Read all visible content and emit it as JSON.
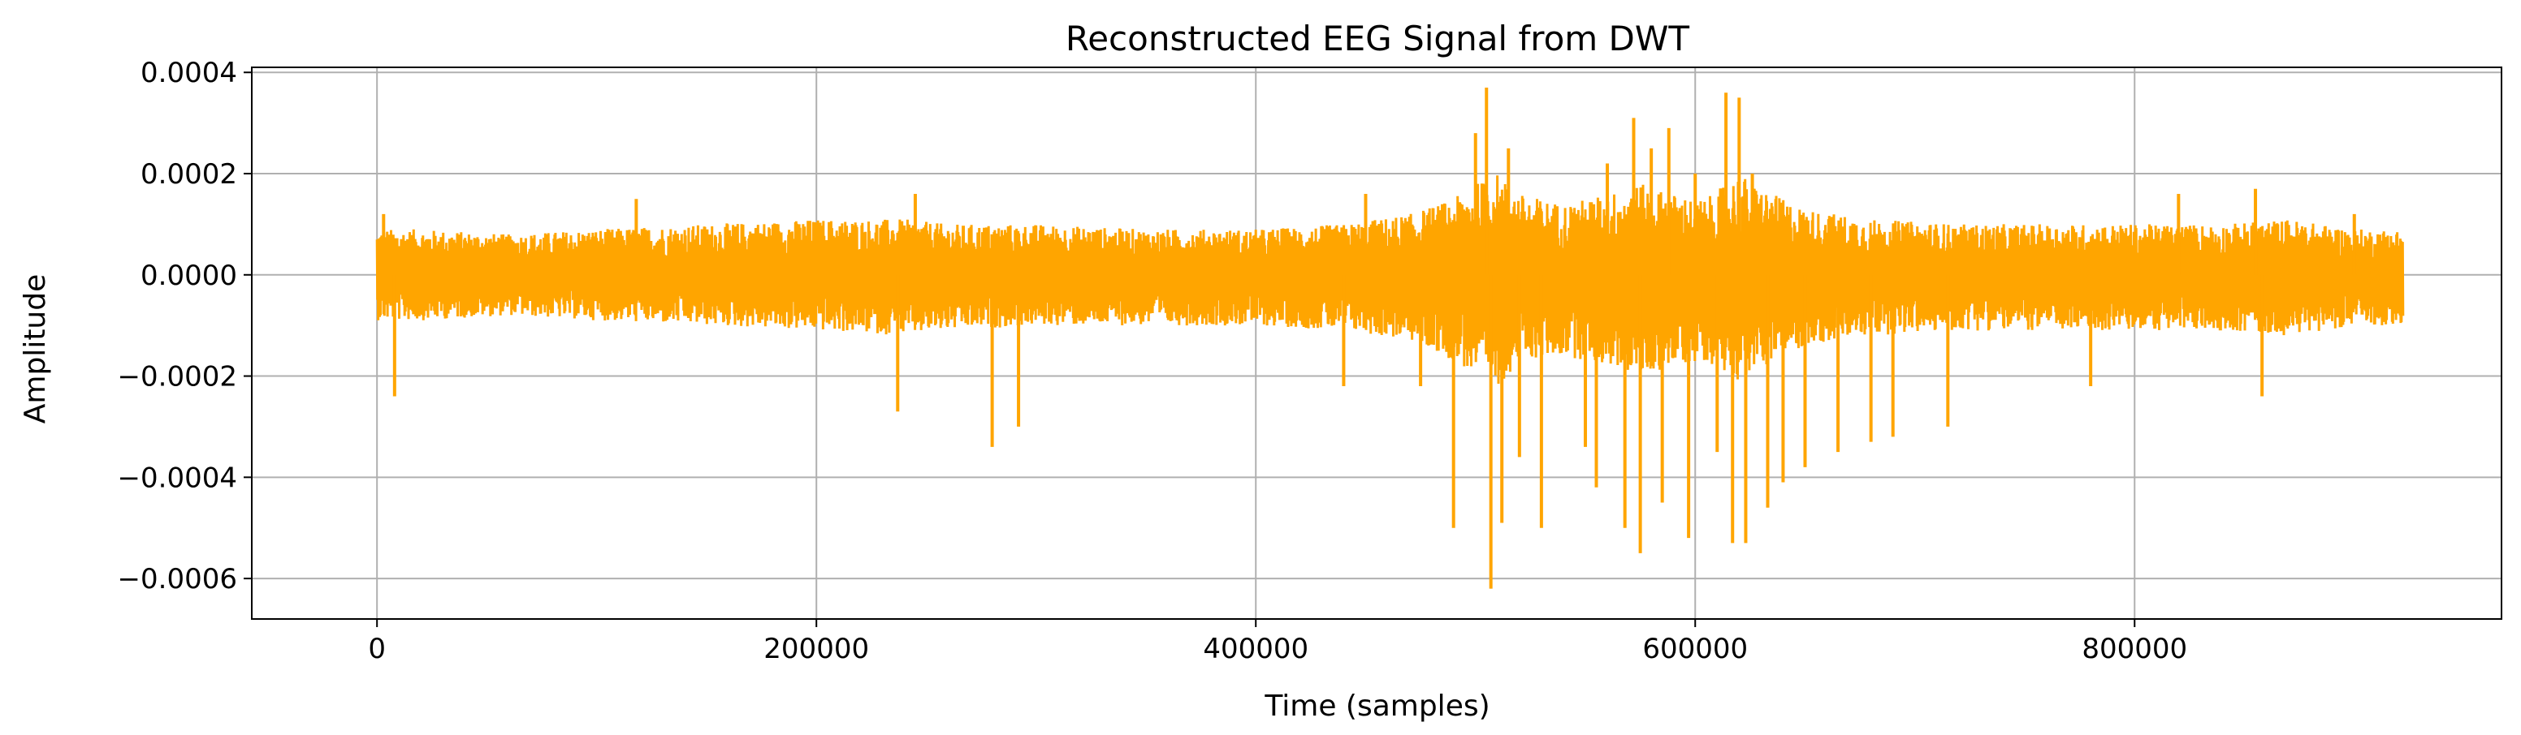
{
  "chart_data": {
    "type": "line",
    "title": "Reconstructed EEG Signal from DWT",
    "xlabel": "Time (samples)",
    "ylabel": "Amplitude",
    "xlim": [
      -57000,
      967000
    ],
    "ylim": [
      -0.00068,
      0.00041
    ],
    "x_ticks": [
      0,
      200000,
      400000,
      600000,
      800000
    ],
    "x_tick_labels": [
      "0",
      "200000",
      "400000",
      "600000",
      "800000"
    ],
    "y_ticks": [
      0.0004,
      0.0002,
      0.0,
      -0.0002,
      -0.0004,
      -0.0006
    ],
    "y_tick_labels": [
      "0.0004",
      "0.0002",
      "0.0000",
      "−0.0002",
      "−0.0004",
      "−0.0006"
    ],
    "grid": true,
    "legend": "none",
    "n_samples": 922000,
    "series": [
      {
        "color": "#ffa500",
        "envelope": {
          "x": [
            0,
            20000,
            60000,
            100000,
            150000,
            200000,
            240000,
            260000,
            300000,
            350000,
            400000,
            440000,
            470000,
            490000,
            500000,
            510000,
            520000,
            540000,
            560000,
            575000,
            590000,
            605000,
            620000,
            635000,
            650000,
            680000,
            720000,
            760000,
            800000,
            840000,
            870000,
            900000,
            922000
          ],
          "upper": [
            9e-05,
            9e-05,
            8e-05,
            9e-05,
            0.0001,
            0.00011,
            0.00011,
            0.0001,
            0.0001,
            9e-05,
            9e-05,
            0.0001,
            0.00012,
            0.00015,
            0.00018,
            0.0002,
            0.00016,
            0.00014,
            0.00016,
            0.00018,
            0.00016,
            0.00015,
            0.0002,
            0.00016,
            0.00013,
            0.00011,
            0.0001,
            0.0001,
            0.0001,
            0.0001,
            0.00011,
            9e-05,
            9e-05
          ],
          "lower": [
            -9e-05,
            -9e-05,
            -8e-05,
            -9e-05,
            -0.0001,
            -0.00011,
            -0.00012,
            -0.00011,
            -0.0001,
            -0.0001,
            -0.0001,
            -0.00011,
            -0.00013,
            -0.00017,
            -0.0002,
            -0.00022,
            -0.00017,
            -0.00016,
            -0.00018,
            -0.0002,
            -0.00018,
            -0.00017,
            -0.00021,
            -0.00017,
            -0.00014,
            -0.00012,
            -0.00011,
            -0.00011,
            -0.00011,
            -0.00011,
            -0.00012,
            -0.0001,
            -0.0001
          ]
        },
        "spikes": [
          {
            "x": 3000,
            "y": 0.00012
          },
          {
            "x": 8000,
            "y": -0.00024
          },
          {
            "x": 118000,
            "y": 0.00015
          },
          {
            "x": 237000,
            "y": -0.00027
          },
          {
            "x": 245000,
            "y": 0.00016
          },
          {
            "x": 280000,
            "y": -0.00034
          },
          {
            "x": 292000,
            "y": -0.0003
          },
          {
            "x": 440000,
            "y": -0.00022
          },
          {
            "x": 450000,
            "y": 0.00016
          },
          {
            "x": 475000,
            "y": -0.00022
          },
          {
            "x": 490000,
            "y": -0.0005
          },
          {
            "x": 500000,
            "y": 0.00028
          },
          {
            "x": 505000,
            "y": 0.00037
          },
          {
            "x": 507000,
            "y": -0.00062
          },
          {
            "x": 512000,
            "y": -0.00049
          },
          {
            "x": 515000,
            "y": 0.00025
          },
          {
            "x": 520000,
            "y": -0.00036
          },
          {
            "x": 530000,
            "y": -0.0005
          },
          {
            "x": 550000,
            "y": -0.00034
          },
          {
            "x": 555000,
            "y": -0.00042
          },
          {
            "x": 560000,
            "y": 0.00022
          },
          {
            "x": 568000,
            "y": -0.0005
          },
          {
            "x": 572000,
            "y": 0.00031
          },
          {
            "x": 575000,
            "y": -0.00055
          },
          {
            "x": 580000,
            "y": 0.00025
          },
          {
            "x": 585000,
            "y": -0.00045
          },
          {
            "x": 588000,
            "y": 0.00029
          },
          {
            "x": 597000,
            "y": -0.00052
          },
          {
            "x": 600000,
            "y": 0.0002
          },
          {
            "x": 610000,
            "y": -0.00035
          },
          {
            "x": 614000,
            "y": 0.00036
          },
          {
            "x": 617000,
            "y": -0.00053
          },
          {
            "x": 620000,
            "y": 0.00035
          },
          {
            "x": 623000,
            "y": -0.00053
          },
          {
            "x": 626000,
            "y": 0.0002
          },
          {
            "x": 633000,
            "y": -0.00046
          },
          {
            "x": 640000,
            "y": -0.00041
          },
          {
            "x": 650000,
            "y": -0.00038
          },
          {
            "x": 665000,
            "y": -0.00035
          },
          {
            "x": 680000,
            "y": -0.00033
          },
          {
            "x": 690000,
            "y": -0.00032
          },
          {
            "x": 715000,
            "y": -0.0003
          },
          {
            "x": 780000,
            "y": -0.00022
          },
          {
            "x": 820000,
            "y": 0.00016
          },
          {
            "x": 855000,
            "y": 0.00017
          },
          {
            "x": 858000,
            "y": -0.00024
          },
          {
            "x": 900000,
            "y": 0.00012
          }
        ]
      }
    ]
  }
}
